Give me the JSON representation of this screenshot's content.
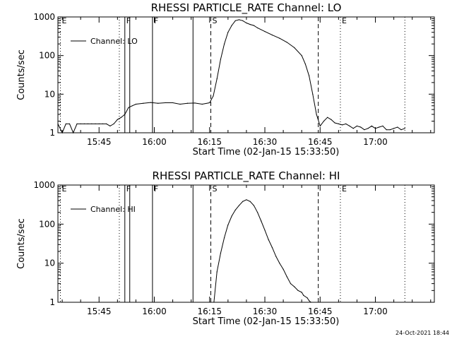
{
  "chart_data": [
    {
      "type": "line",
      "title": "RHESSI PARTICLE_RATE Channel: LO",
      "xlabel": "Start Time (02-Jan-15 15:33:50)",
      "ylabel": "Counts/sec",
      "y_scale": "log",
      "ylim": [
        1,
        1000
      ],
      "y_tick_labels": [
        "1",
        "10",
        "100",
        "1000"
      ],
      "x_tick_labels": [
        "15:45",
        "16:00",
        "16:15",
        "16:30",
        "16:45",
        "17:00"
      ],
      "xlim": [
        "15:33:50",
        "17:16:00"
      ],
      "grid": false,
      "legend": {
        "placement": "top-left",
        "entries": [
          "Channel: LO"
        ]
      },
      "vertical_markers": [
        {
          "time": "15:34:30",
          "style": "dotted",
          "label": "E"
        },
        {
          "time": "15:50:30",
          "style": "dotted",
          "label": ""
        },
        {
          "time": "15:52:00",
          "style": "solid",
          "label": "F"
        },
        {
          "time": "15:53:20",
          "style": "solid",
          "label": ""
        },
        {
          "time": "15:59:30",
          "style": "solid",
          "label": "F"
        },
        {
          "time": "16:10:30",
          "style": "solid",
          "label": ""
        },
        {
          "time": "16:15:20",
          "style": "dashed",
          "label": "S"
        },
        {
          "time": "16:44:30",
          "style": "dashed",
          "label": ""
        },
        {
          "time": "16:50:30",
          "style": "dotted",
          "label": "E"
        },
        {
          "time": "17:08:00",
          "style": "dotted",
          "label": ""
        }
      ],
      "series": [
        {
          "name": "Channel: LO",
          "x": [
            "15:33:50",
            "15:35:00",
            "15:36:00",
            "15:37:00",
            "15:38:00",
            "15:39:00",
            "15:40:00",
            "15:41:00",
            "15:42:00",
            "15:43:00",
            "15:44:00",
            "15:45:00",
            "15:46:00",
            "15:47:00",
            "15:48:00",
            "15:49:00",
            "15:50:00",
            "15:51:00",
            "15:52:00",
            "15:53:00",
            "15:54:00",
            "15:55:00",
            "15:57:00",
            "15:59:00",
            "16:01:00",
            "16:03:00",
            "16:05:00",
            "16:07:00",
            "16:09:00",
            "16:11:00",
            "16:13:00",
            "16:15:00",
            "16:16:00",
            "16:17:00",
            "16:18:00",
            "16:19:00",
            "16:20:00",
            "16:21:00",
            "16:22:00",
            "16:23:00",
            "16:24:00",
            "16:25:00",
            "16:26:00",
            "16:27:00",
            "16:28:00",
            "16:30:00",
            "16:32:00",
            "16:34:00",
            "16:36:00",
            "16:38:00",
            "16:40:00",
            "16:41:00",
            "16:42:00",
            "16:43:00",
            "16:44:00",
            "16:45:00",
            "16:46:00",
            "16:47:00",
            "16:48:00",
            "16:49:00",
            "16:50:00",
            "16:51:00",
            "16:52:00",
            "16:53:00",
            "16:54:00",
            "16:55:00",
            "16:56:00",
            "16:57:00",
            "16:58:00",
            "16:59:00",
            "17:00:00",
            "17:01:00",
            "17:02:00",
            "17:03:00",
            "17:04:00",
            "17:05:00",
            "17:06:00",
            "17:07:00",
            "17:08:00"
          ],
          "y": [
            1.7,
            1,
            1.7,
            1.7,
            1,
            1.7,
            1.7,
            1.7,
            1.7,
            1.7,
            1.7,
            1.7,
            1.7,
            1.7,
            1.5,
            1.7,
            2.2,
            2.5,
            3,
            4.5,
            5,
            5.5,
            5.8,
            6.1,
            5.8,
            6,
            6,
            5.5,
            5.8,
            5.9,
            5.5,
            6,
            9,
            25,
            80,
            200,
            400,
            600,
            800,
            850,
            800,
            700,
            640,
            600,
            520,
            420,
            340,
            280,
            220,
            160,
            100,
            60,
            30,
            10,
            3,
            1.5,
            2,
            2.5,
            2.2,
            1.8,
            1.7,
            1.6,
            1.7,
            1.5,
            1.3,
            1.5,
            1.4,
            1.2,
            1.3,
            1.5,
            1.3,
            1.4,
            1.5,
            1.2,
            1.2,
            1.3,
            1.4,
            1.2,
            1.3
          ]
        }
      ]
    },
    {
      "type": "line",
      "title": "RHESSI PARTICLE_RATE Channel: HI",
      "xlabel": "Start Time (02-Jan-15 15:33:50)",
      "ylabel": "Counts/sec",
      "y_scale": "log",
      "ylim": [
        1,
        1000
      ],
      "y_tick_labels": [
        "1",
        "10",
        "100",
        "1000"
      ],
      "x_tick_labels": [
        "15:45",
        "16:00",
        "16:15",
        "16:30",
        "16:45",
        "17:00"
      ],
      "xlim": [
        "15:33:50",
        "17:16:00"
      ],
      "grid": false,
      "legend": {
        "placement": "top-left",
        "entries": [
          "Channel: HI"
        ]
      },
      "vertical_markers": [
        {
          "time": "15:34:30",
          "style": "dotted",
          "label": "E"
        },
        {
          "time": "15:50:30",
          "style": "dotted",
          "label": ""
        },
        {
          "time": "15:52:00",
          "style": "solid",
          "label": "F"
        },
        {
          "time": "15:53:20",
          "style": "solid",
          "label": ""
        },
        {
          "time": "15:59:30",
          "style": "solid",
          "label": "F"
        },
        {
          "time": "16:10:30",
          "style": "solid",
          "label": ""
        },
        {
          "time": "16:15:20",
          "style": "dashed",
          "label": "S"
        },
        {
          "time": "16:44:30",
          "style": "dashed",
          "label": ""
        },
        {
          "time": "16:50:30",
          "style": "dotted",
          "label": "E"
        },
        {
          "time": "17:08:00",
          "style": "dotted",
          "label": ""
        }
      ],
      "series": [
        {
          "name": "Channel: HI",
          "x": [
            "16:16:10",
            "16:17:00",
            "16:18:00",
            "16:19:00",
            "16:20:00",
            "16:21:00",
            "16:22:00",
            "16:23:00",
            "16:24:00",
            "16:25:00",
            "16:26:00",
            "16:27:00",
            "16:28:00",
            "16:29:00",
            "16:30:00",
            "16:31:00",
            "16:32:00",
            "16:33:00",
            "16:34:00",
            "16:35:00",
            "16:36:00",
            "16:37:00",
            "16:38:00",
            "16:39:00",
            "16:40:00",
            "16:40:30",
            "16:41:30",
            "16:42:00",
            "16:42:30"
          ],
          "y": [
            1,
            6,
            18,
            45,
            95,
            160,
            230,
            300,
            380,
            420,
            380,
            300,
            200,
            120,
            70,
            40,
            25,
            15,
            10,
            7,
            4.5,
            3,
            2.5,
            2,
            1.8,
            1.5,
            1.3,
            1.1,
            1
          ]
        }
      ]
    }
  ],
  "footer": {
    "timestamp": "24-Oct-2021 18:44"
  }
}
